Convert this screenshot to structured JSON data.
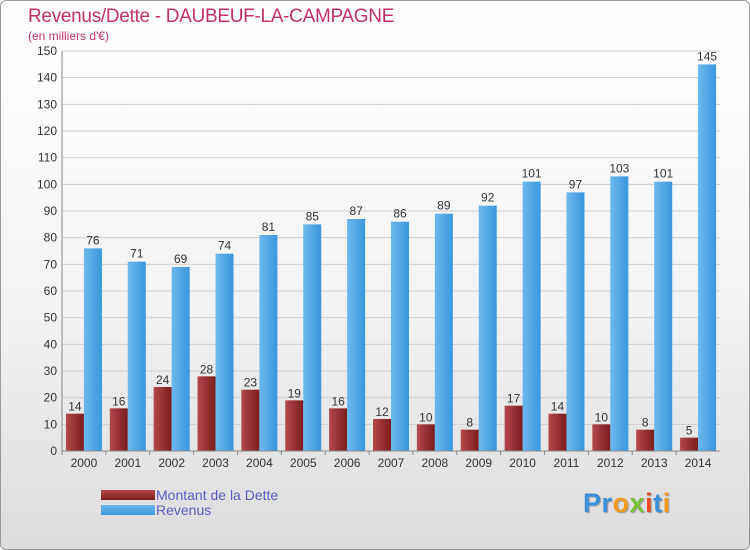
{
  "title": "Revenus/Dette - DAUBEUF-LA-CAMPAGNE",
  "subtitle": "(en milliers d'€)",
  "logo": {
    "text": "Proxiti",
    "letters": [
      "P",
      "r",
      "o",
      "x",
      "i",
      "t",
      "i"
    ],
    "colors": [
      "#3a8fd8",
      "#3a8fd8",
      "#f29b1f",
      "#7bbf3a",
      "#e84a2a",
      "#3a8fd8",
      "#f29b1f"
    ]
  },
  "legend": {
    "dette_label": "Montant de la Dette",
    "revenus_label": "Revenus"
  },
  "colors": {
    "dette": "#7a1c1e",
    "dette_light": "#b5484c",
    "revenus": "#3a97de",
    "revenus_light": "#6cb8ee",
    "grid": "#cfcfcf",
    "axis_text": "#333333"
  },
  "chart_data": {
    "type": "bar",
    "title": "Revenus/Dette - DAUBEUF-LA-CAMPAGNE",
    "ylabel": "(en milliers d'€)",
    "xlabel": "",
    "categories": [
      "2000",
      "2001",
      "2002",
      "2003",
      "2004",
      "2005",
      "2006",
      "2007",
      "2008",
      "2009",
      "2010",
      "2011",
      "2012",
      "2013",
      "2014"
    ],
    "ylim": [
      0,
      150
    ],
    "yticks": [
      0,
      10,
      20,
      30,
      40,
      50,
      60,
      70,
      80,
      90,
      100,
      110,
      120,
      130,
      140,
      150
    ],
    "grid": true,
    "legend_position": "bottom-left",
    "series": [
      {
        "name": "Montant de la Dette",
        "values": [
          14,
          16,
          24,
          28,
          23,
          19,
          16,
          12,
          10,
          8,
          17,
          14,
          10,
          8,
          5
        ]
      },
      {
        "name": "Revenus",
        "values": [
          76,
          71,
          69,
          74,
          81,
          85,
          87,
          86,
          89,
          92,
          101,
          97,
          103,
          101,
          145
        ]
      }
    ]
  }
}
